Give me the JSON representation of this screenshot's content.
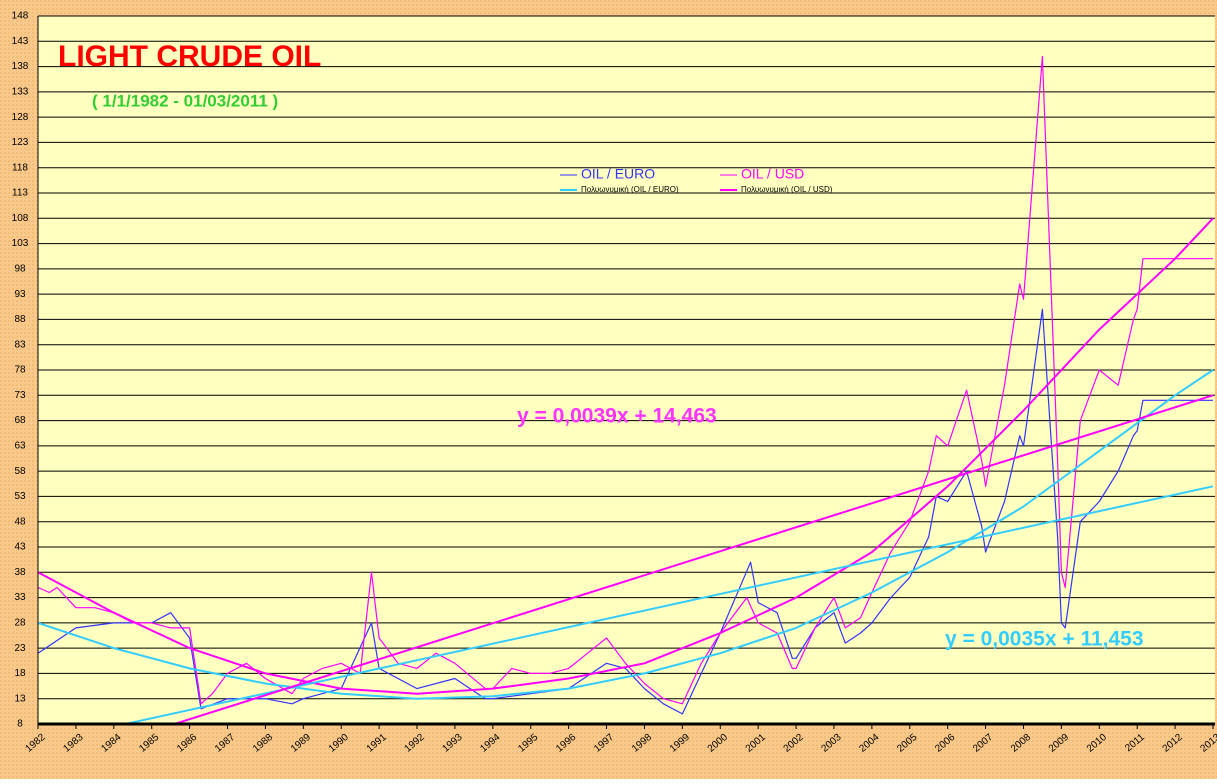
{
  "chart_data": {
    "type": "line",
    "title": "LIGHT CRUDE OIL",
    "subtitle": "( 1/1/1982 - 01/03/2011 )",
    "annotations": [
      {
        "text": "y = 0,0039x + 14,463",
        "color": "#ff33ff"
      },
      {
        "text": "y = 0,0035x + 11,453",
        "color": "#33ccff"
      }
    ],
    "xlim": [
      1982,
      2013
    ],
    "xticks": [
      1982,
      1983,
      1984,
      1985,
      1986,
      1987,
      1988,
      1989,
      1990,
      1991,
      1992,
      1993,
      1994,
      1995,
      1996,
      1997,
      1998,
      1999,
      2000,
      2001,
      2002,
      2003,
      2004,
      2005,
      2006,
      2007,
      2008,
      2009,
      2010,
      2011,
      2012,
      2013
    ],
    "ylim": [
      8,
      148
    ],
    "yticks": [
      8,
      13,
      18,
      23,
      28,
      33,
      38,
      43,
      48,
      53,
      58,
      63,
      68,
      73,
      78,
      83,
      88,
      93,
      98,
      103,
      108,
      113,
      118,
      123,
      128,
      133,
      138,
      143,
      148
    ],
    "grid": true,
    "series": [
      {
        "name": "OIL / EURO",
        "color": "#3333ff",
        "width": 1.2,
        "x": [
          1982,
          1983,
          1984,
          1985,
          1985.5,
          1986,
          1986.3,
          1987,
          1988,
          1988.7,
          1989,
          1990,
          1990.8,
          1991,
          1992,
          1993,
          1993.8,
          1994,
          1995,
          1996,
          1997,
          1997.5,
          1998,
          1998.5,
          1999,
          1999.5,
          2000,
          2000.8,
          2001,
          2001.5,
          2001.9,
          2002,
          2002.5,
          2003,
          2003.3,
          2003.7,
          2004,
          2004.5,
          2005,
          2005.5,
          2005.7,
          2006,
          2006.5,
          2006.9,
          2007,
          2007.5,
          2007.9,
          2008,
          2008.5,
          2008.9,
          2009,
          2009.1,
          2009.5,
          2010,
          2010.5,
          2010.9,
          2011,
          2011.15,
          2012,
          2013
        ],
        "values": [
          22,
          27,
          28,
          28,
          30,
          25,
          11,
          13,
          13,
          12,
          13,
          15,
          28,
          19,
          15,
          17,
          13,
          13,
          14,
          15,
          20,
          19,
          15,
          12,
          10,
          18,
          26,
          40,
          32,
          30,
          21,
          21,
          27,
          30,
          24,
          26,
          28,
          33,
          37,
          45,
          53,
          52,
          58,
          47,
          42,
          52,
          65,
          63,
          90,
          45,
          28,
          27,
          48,
          52,
          58,
          65,
          66,
          72,
          72,
          72
        ]
      },
      {
        "name": "OIL / USD",
        "color": "#ff00ff",
        "width": 1.2,
        "x": [
          1982,
          1982.3,
          1982.5,
          1983,
          1983.5,
          1984,
          1984.5,
          1985,
          1985.5,
          1986,
          1986.3,
          1986.6,
          1987,
          1987.5,
          1988,
          1988.7,
          1989,
          1989.5,
          1990,
          1990.5,
          1990.8,
          1991,
          1991.5,
          1992,
          1992.5,
          1993,
          1993.8,
          1994,
          1994.5,
          1995,
          1995.5,
          1996,
          1996.5,
          1997,
          1997.5,
          1998,
          1998.5,
          1999,
          1999.5,
          2000,
          2000.7,
          2001,
          2001.5,
          2001.9,
          2002,
          2002.5,
          2003,
          2003.3,
          2003.7,
          2004,
          2004.5,
          2005,
          2005.5,
          2005.7,
          2006,
          2006.5,
          2006.9,
          2007,
          2007.5,
          2007.9,
          2008,
          2008.5,
          2008.9,
          2009,
          2009.1,
          2009.5,
          2010,
          2010.5,
          2010.9,
          2011,
          2011.15,
          2012,
          2013
        ],
        "values": [
          35,
          34,
          35,
          31,
          31,
          30,
          28,
          28,
          27,
          27,
          12,
          14,
          18,
          20,
          17,
          14,
          17,
          19,
          20,
          18,
          38,
          25,
          20,
          19,
          22,
          20,
          15,
          15,
          19,
          18,
          18,
          19,
          22,
          25,
          20,
          16,
          13,
          12,
          20,
          26,
          33,
          28,
          26,
          19,
          19,
          27,
          33,
          27,
          29,
          34,
          42,
          48,
          58,
          65,
          63,
          74,
          60,
          55,
          75,
          95,
          92,
          140,
          60,
          38,
          35,
          68,
          78,
          75,
          88,
          90,
          100,
          100,
          100
        ]
      },
      {
        "name": "Πολυωνυμική (OIL / EURO)",
        "color": "#33ccff",
        "width": 2,
        "x": [
          1982,
          1984,
          1986,
          1988,
          1990,
          1992,
          1994,
          1996,
          1998,
          2000,
          2002,
          2004,
          2006,
          2008,
          2010,
          2012,
          2013
        ],
        "values": [
          28,
          23,
          19,
          16,
          14,
          13,
          13.5,
          15,
          18,
          22,
          27,
          34,
          42,
          51,
          62,
          73,
          78
        ]
      },
      {
        "name": "Πολυωνυμική (OIL / USD)",
        "color": "#ff00ff",
        "width": 2,
        "x": [
          1982,
          1984,
          1986,
          1988,
          1990,
          1992,
          1994,
          1996,
          1998,
          2000,
          2002,
          2004,
          2006,
          2008,
          2010,
          2012,
          2013
        ],
        "values": [
          38,
          30,
          23,
          18,
          15,
          14,
          15,
          17,
          20,
          26,
          33,
          42,
          55,
          70,
          86,
          100,
          108
        ]
      },
      {
        "color": "#33ccff",
        "width": 2,
        "x": [
          1984.3,
          2013
        ],
        "values": [
          8,
          55
        ]
      },
      {
        "color": "#ff00ff",
        "width": 2,
        "x": [
          1985.6,
          2013
        ],
        "values": [
          8,
          73
        ]
      }
    ]
  }
}
